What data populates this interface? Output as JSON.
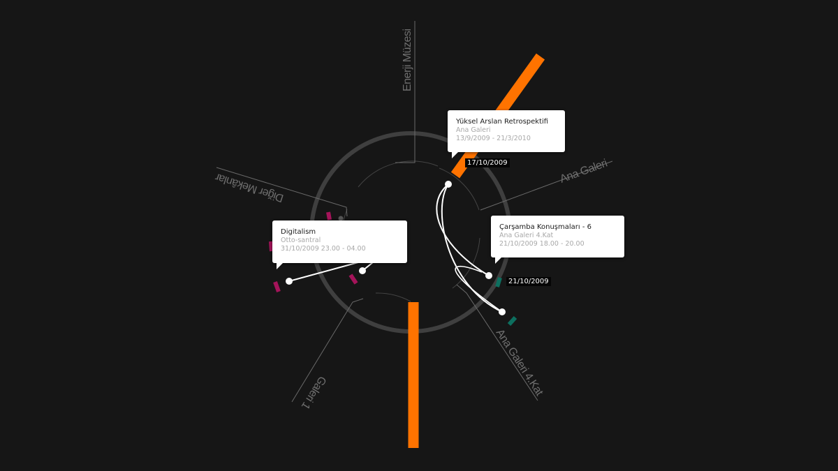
{
  "venues": [
    {
      "id": "enerji",
      "label": "Enerji Müzesi"
    },
    {
      "id": "ana-galeri",
      "label": "Ana Galeri"
    },
    {
      "id": "ana-galeri-4",
      "label": "Ana Galeri 4.Kat"
    },
    {
      "id": "galeri-1",
      "label": "Galeri 1"
    },
    {
      "id": "diger",
      "label": "Diğer Mekânlar"
    }
  ],
  "date_tags": [
    {
      "id": "tag-1",
      "text": "17/10/2009"
    },
    {
      "id": "tag-2",
      "text": "21/10/2009"
    }
  ],
  "events": [
    {
      "id": "yuksel",
      "title": "Yüksel Arslan Retrospektifi",
      "venue": "Ana Galeri",
      "dates": "13/9/2009 - 21/3/2010"
    },
    {
      "id": "digitalism",
      "title": "Digitalism",
      "venue": "Otto-santral",
      "dates": "31/10/2009 23.00 - 04.00"
    },
    {
      "id": "carsamba",
      "title": "Çarşamba Konuşmaları - 6",
      "venue": "Ana Galeri 4.Kat",
      "dates": "21/10/2009 18.00 - 20.00"
    }
  ],
  "colors": {
    "background": "#161616",
    "ring": "#3f3f3f",
    "exhibition": "#ff7300",
    "event_magenta": "#a4145a",
    "event_teal": "#0d6f5f",
    "connector": "#ffffff",
    "label": "#6f6f6f"
  }
}
